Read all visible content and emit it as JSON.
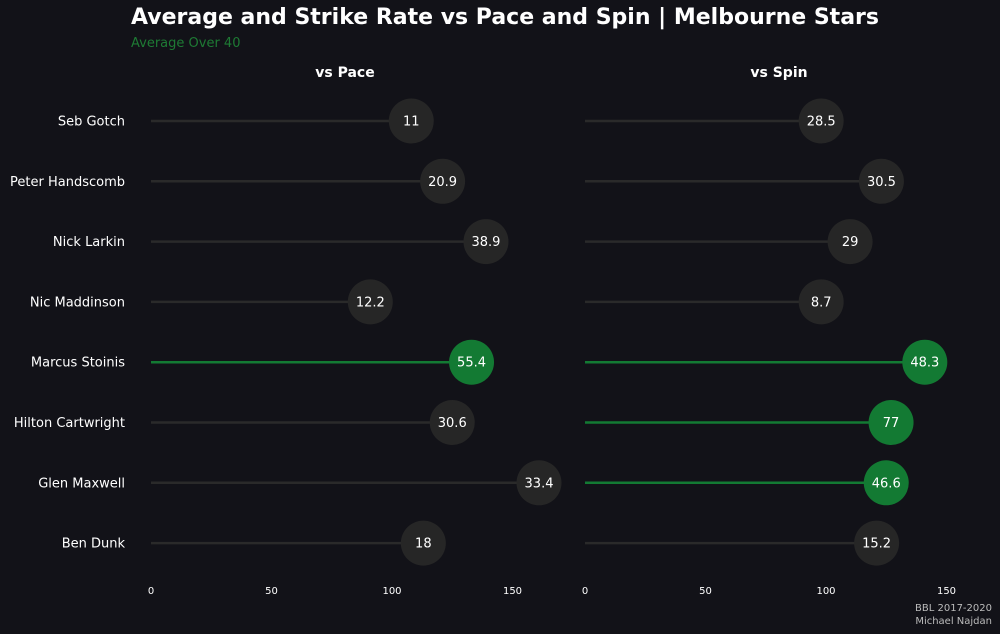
{
  "chart_data": {
    "type": "lollipop",
    "title": "Average and Strike Rate vs Pace and Spin | Melbourne Stars",
    "subtitle": "Average Over 40",
    "caption": [
      "BBL 2017-2020",
      "Michael Najdan"
    ],
    "players": [
      "Seb Gotch",
      "Peter Handscomb",
      "Nick Larkin",
      "Nic Maddinson",
      "Marcus Stoinis",
      "Hilton Cartwright",
      "Glen Maxwell",
      "Ben Dunk"
    ],
    "xlim": [
      0,
      170
    ],
    "ticks": [
      0,
      50,
      100,
      150
    ],
    "colors": {
      "background": "#121218",
      "neutral": "#262626",
      "line": "#2a2a2a",
      "highlight": "#137a33"
    },
    "panels": [
      {
        "name": "vs Pace",
        "strike_rate": [
          108,
          121,
          139,
          91,
          133,
          125,
          161,
          113
        ],
        "average": [
          "11",
          "20.9",
          "38.9",
          "12.2",
          "55.4",
          "30.6",
          "33.4",
          "18"
        ],
        "highlight": [
          false,
          false,
          false,
          false,
          true,
          false,
          false,
          false
        ]
      },
      {
        "name": "vs Spin",
        "strike_rate": [
          98,
          123,
          110,
          98,
          141,
          127,
          125,
          121
        ],
        "average": [
          "28.5",
          "30.5",
          "29",
          "8.7",
          "48.3",
          "77",
          "46.6",
          "15.2"
        ],
        "highlight": [
          false,
          false,
          false,
          false,
          true,
          true,
          true,
          false
        ]
      }
    ]
  }
}
